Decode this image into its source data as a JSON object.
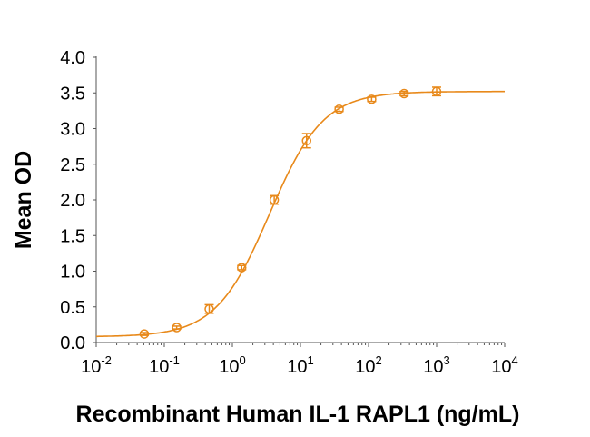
{
  "chart_data": {
    "type": "scatter",
    "title": "",
    "xlabel": "Recombinant Human IL-1 RAPL1 (ng/mL)",
    "ylabel": "Mean OD",
    "xscale": "log",
    "xlim": [
      0.01,
      10000
    ],
    "ylim": [
      0,
      4.0
    ],
    "x_tick_labels": [
      {
        "base": "10",
        "exp": "-2",
        "value": 0.01
      },
      {
        "base": "10",
        "exp": "-1",
        "value": 0.1
      },
      {
        "base": "10",
        "exp": "0",
        "value": 1
      },
      {
        "base": "10",
        "exp": "1",
        "value": 10
      },
      {
        "base": "10",
        "exp": "2",
        "value": 100
      },
      {
        "base": "10",
        "exp": "3",
        "value": 1000
      },
      {
        "base": "10",
        "exp": "4",
        "value": 10000
      }
    ],
    "y_ticks": [
      "0.0",
      "0.5",
      "1.0",
      "1.5",
      "2.0",
      "2.5",
      "3.0",
      "3.5",
      "4.0"
    ],
    "grid": false,
    "color": "#E8891A",
    "series": [
      {
        "name": "Mean OD",
        "x": [
          0.0508,
          0.152,
          0.457,
          1.37,
          4.12,
          12.3,
          37,
          111,
          333,
          1000
        ],
        "y": [
          0.12,
          0.21,
          0.47,
          1.05,
          2.0,
          2.83,
          3.27,
          3.41,
          3.49,
          3.52
        ],
        "error": [
          0.02,
          0.02,
          0.06,
          0.03,
          0.06,
          0.1,
          0.03,
          0.03,
          0.03,
          0.06
        ]
      }
    ],
    "fit": {
      "model": "4PL",
      "bottom": 0.08,
      "top": 3.52,
      "ec50": 3.5,
      "hill": 1.1
    }
  }
}
